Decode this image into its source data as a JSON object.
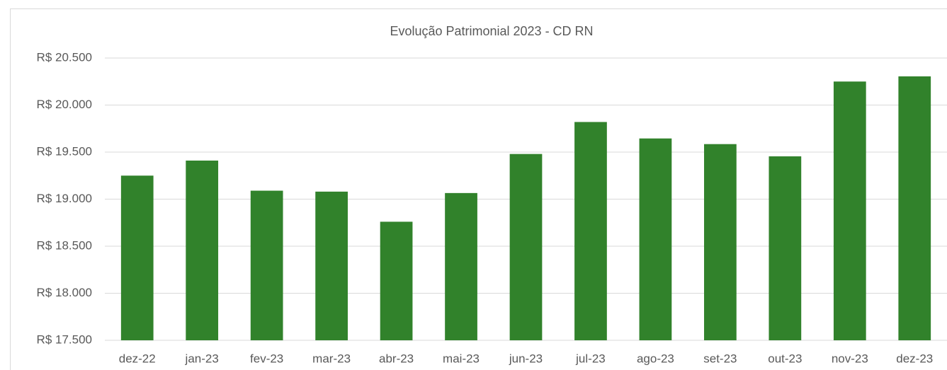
{
  "chart_data": {
    "type": "bar",
    "title": "Evolução Patrimonial 2023 - CD RN",
    "categories": [
      "dez-22",
      "jan-23",
      "fev-23",
      "mar-23",
      "abr-23",
      "mai-23",
      "jun-23",
      "jul-23",
      "ago-23",
      "set-23",
      "out-23",
      "nov-23",
      "dez-23"
    ],
    "values": [
      19250,
      19410,
      19090,
      19080,
      18760,
      19065,
      19480,
      19820,
      19645,
      19585,
      19455,
      20250,
      20305
    ],
    "color": "#31822b",
    "ylim": [
      17500,
      20500
    ],
    "yticks": [
      {
        "value": 17500,
        "label": "R$ 17.500"
      },
      {
        "value": 18000,
        "label": "R$ 18.000"
      },
      {
        "value": 18500,
        "label": "R$ 18.500"
      },
      {
        "value": 19000,
        "label": "R$ 19.000"
      },
      {
        "value": 19500,
        "label": "R$ 19.500"
      },
      {
        "value": 20000,
        "label": "R$ 20.000"
      },
      {
        "value": 20500,
        "label": "R$ 20.500"
      }
    ],
    "grid": true
  }
}
